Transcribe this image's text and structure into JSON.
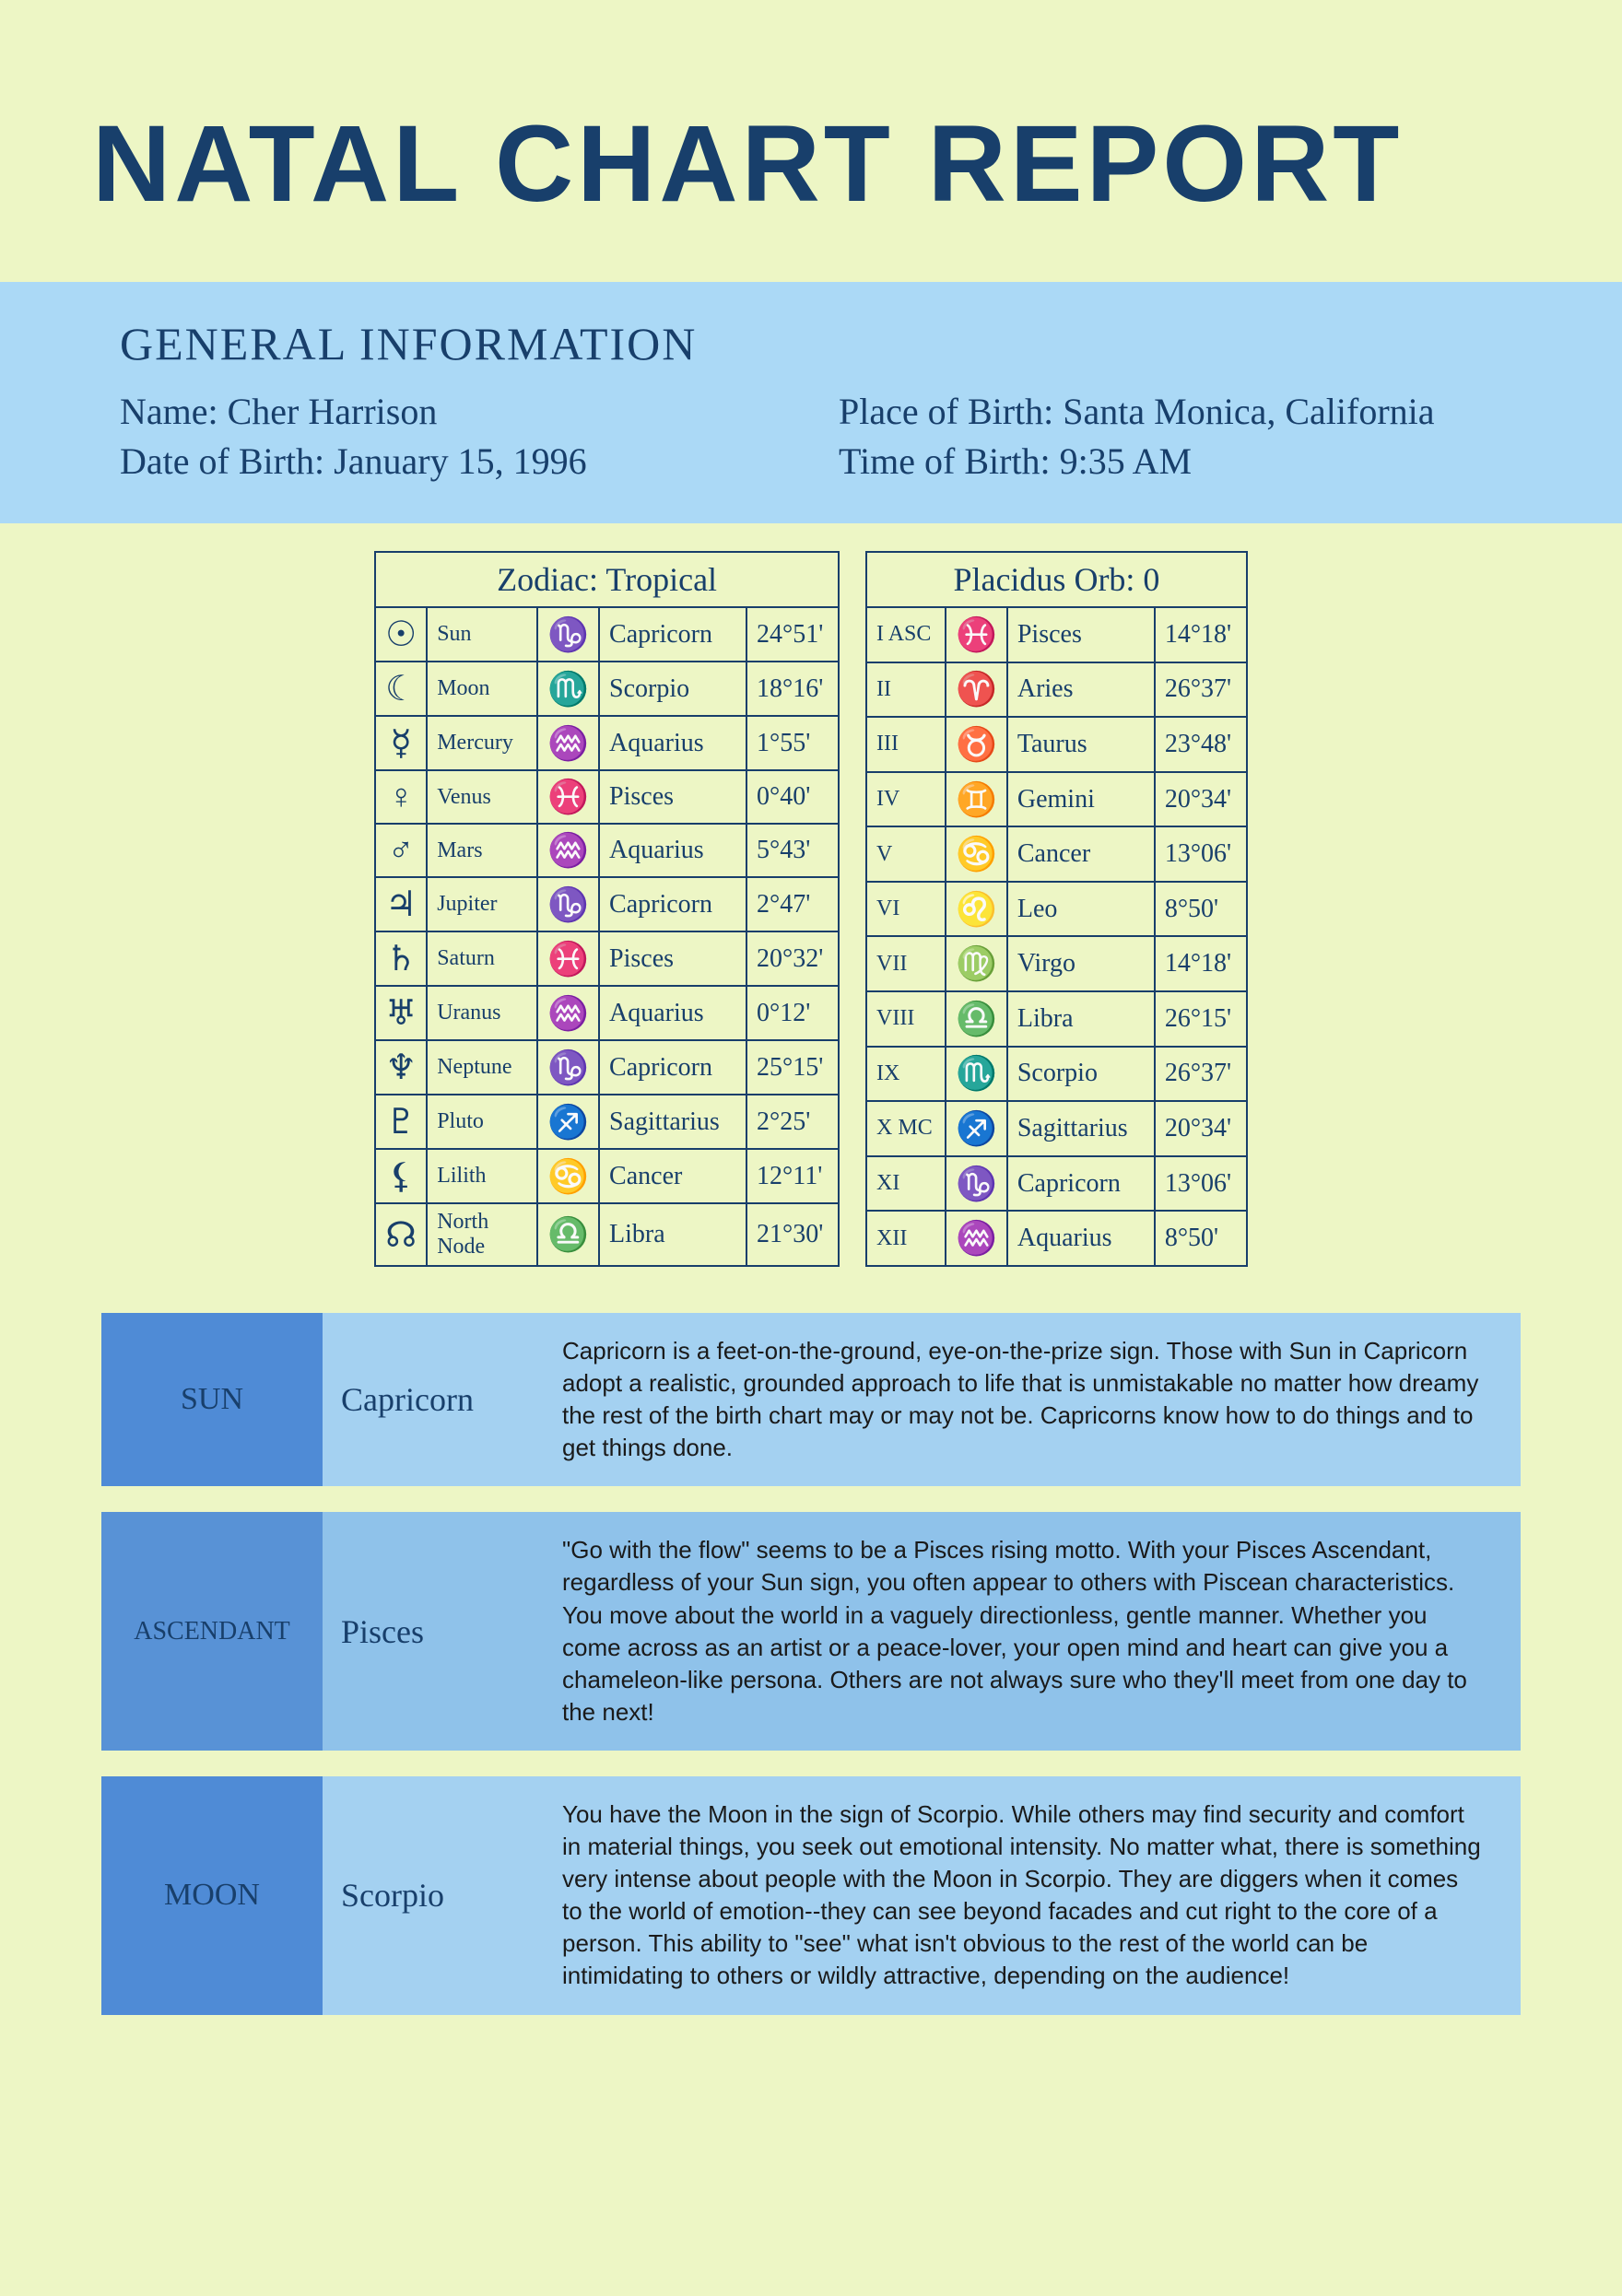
{
  "title": "NATAL CHART REPORT",
  "info": {
    "heading": "GENERAL INFORMATION",
    "name_label": "Name:",
    "name": "Cher Harrison",
    "dob_label": "Date of Birth:",
    "dob": "January 15, 1996",
    "pob_label": "Place of Birth:",
    "pob": "Santa Monica, California",
    "tob_label": "Time of Birth:",
    "tob": "9:35 AM"
  },
  "colors": {
    "page_bg": "#edf6c5",
    "band_bg": "#abd9f6",
    "heading": "#183f6b",
    "row_label_bg_1": "#4f8bd6",
    "row_label_bg_2": "#5892d6",
    "row_label_bg_3": "#4f8bd6",
    "row_sign_bg": "#a4d1f1",
    "row_text_bg_1": "#a4d1f1",
    "row_text_bg_2": "#8fc2ea",
    "row_text_bg_3": "#a4d1f1"
  },
  "table_left": {
    "header": "Zodiac: Tropical",
    "rows": [
      {
        "g": "☉",
        "planet": "Sun",
        "sg": "♑",
        "sign": "Capricorn",
        "deg": "24°51'"
      },
      {
        "g": "☾",
        "planet": "Moon",
        "sg": "♏",
        "sign": "Scorpio",
        "deg": "18°16'"
      },
      {
        "g": "☿",
        "planet": "Mercury",
        "sg": "♒",
        "sign": "Aquarius",
        "deg": "1°55'"
      },
      {
        "g": "♀",
        "planet": "Venus",
        "sg": "♓",
        "sign": "Pisces",
        "deg": "0°40'"
      },
      {
        "g": "♂",
        "planet": "Mars",
        "sg": "♒",
        "sign": "Aquarius",
        "deg": "5°43'"
      },
      {
        "g": "♃",
        "planet": "Jupiter",
        "sg": "♑",
        "sign": "Capricorn",
        "deg": "2°47'"
      },
      {
        "g": "♄",
        "planet": "Saturn",
        "sg": "♓",
        "sign": "Pisces",
        "deg": "20°32'"
      },
      {
        "g": "♅",
        "planet": "Uranus",
        "sg": "♒",
        "sign": "Aquarius",
        "deg": "0°12'"
      },
      {
        "g": "♆",
        "planet": "Neptune",
        "sg": "♑",
        "sign": "Capricorn",
        "deg": "25°15'"
      },
      {
        "g": "♇",
        "planet": "Pluto",
        "sg": "♐",
        "sign": "Sagittarius",
        "deg": "2°25'"
      },
      {
        "g": "⚸",
        "planet": "Lilith",
        "sg": "♋",
        "sign": "Cancer",
        "deg": "12°11'"
      },
      {
        "g": "☊",
        "planet": "North Node",
        "sg": "♎",
        "sign": "Libra",
        "deg": "21°30'"
      }
    ]
  },
  "table_right": {
    "header": "Placidus Orb: 0",
    "rows": [
      {
        "h": "I ASC",
        "sg": "♓",
        "sign": "Pisces",
        "deg": "14°18'"
      },
      {
        "h": "II",
        "sg": "♈",
        "sign": "Aries",
        "deg": "26°37'"
      },
      {
        "h": "III",
        "sg": "♉",
        "sign": "Taurus",
        "deg": "23°48'"
      },
      {
        "h": "IV",
        "sg": "♊",
        "sign": "Gemini",
        "deg": "20°34'"
      },
      {
        "h": "V",
        "sg": "♋",
        "sign": "Cancer",
        "deg": "13°06'"
      },
      {
        "h": "VI",
        "sg": "♌",
        "sign": "Leo",
        "deg": "8°50'"
      },
      {
        "h": "VII",
        "sg": "♍",
        "sign": "Virgo",
        "deg": "14°18'"
      },
      {
        "h": "VIII",
        "sg": "♎",
        "sign": "Libra",
        "deg": "26°15'"
      },
      {
        "h": "IX",
        "sg": "♏",
        "sign": "Scorpio",
        "deg": "26°37'"
      },
      {
        "h": "X MC",
        "sg": "♐",
        "sign": "Sagittarius",
        "deg": "20°34'"
      },
      {
        "h": "XI",
        "sg": "♑",
        "sign": "Capricorn",
        "deg": "13°06'"
      },
      {
        "h": "XII",
        "sg": "♒",
        "sign": "Aquarius",
        "deg": "8°50'"
      }
    ]
  },
  "interpretations": [
    {
      "label": "SUN",
      "sign": "Capricorn",
      "text": "Capricorn is a feet-on-the-ground, eye-on-the-prize sign. Those with Sun in Capricorn adopt a realistic, grounded approach to life that is unmistakable no matter how dreamy the rest of the birth chart may or may not be. Capricorns know how to do things and to get things done.",
      "label_bg": "#4f8bd6",
      "sign_bg": "#a4d1f1",
      "text_bg": "#a4d1f1"
    },
    {
      "label": "ASCENDANT",
      "sign": "Pisces",
      "text": "\"Go with the flow\" seems to be a Pisces rising motto. With your Pisces Ascendant, regardless of your Sun sign, you often appear to others with Piscean characteristics. You move about the world in a vaguely directionless, gentle manner. Whether you come across as an artist or a peace-lover, your open mind and heart can give you a chameleon-like persona. Others are not always sure who they'll meet from one day to the next!",
      "label_bg": "#5892d6",
      "sign_bg": "#8fc2ea",
      "text_bg": "#8fc2ea"
    },
    {
      "label": "MOON",
      "sign": "Scorpio",
      "text": "You have the Moon in the sign of Scorpio. While others may find security and comfort in material things, you seek out emotional intensity. No matter what, there is something very intense about people with the Moon in Scorpio. They are diggers when it comes to the world of emotion--they can see beyond facades and cut right to the core of a person. This ability to \"see\" what isn't obvious to the rest of the world can be intimidating to others or wildly attractive, depending on the audience!",
      "label_bg": "#4f8bd6",
      "sign_bg": "#a4d1f1",
      "text_bg": "#a4d1f1"
    }
  ]
}
